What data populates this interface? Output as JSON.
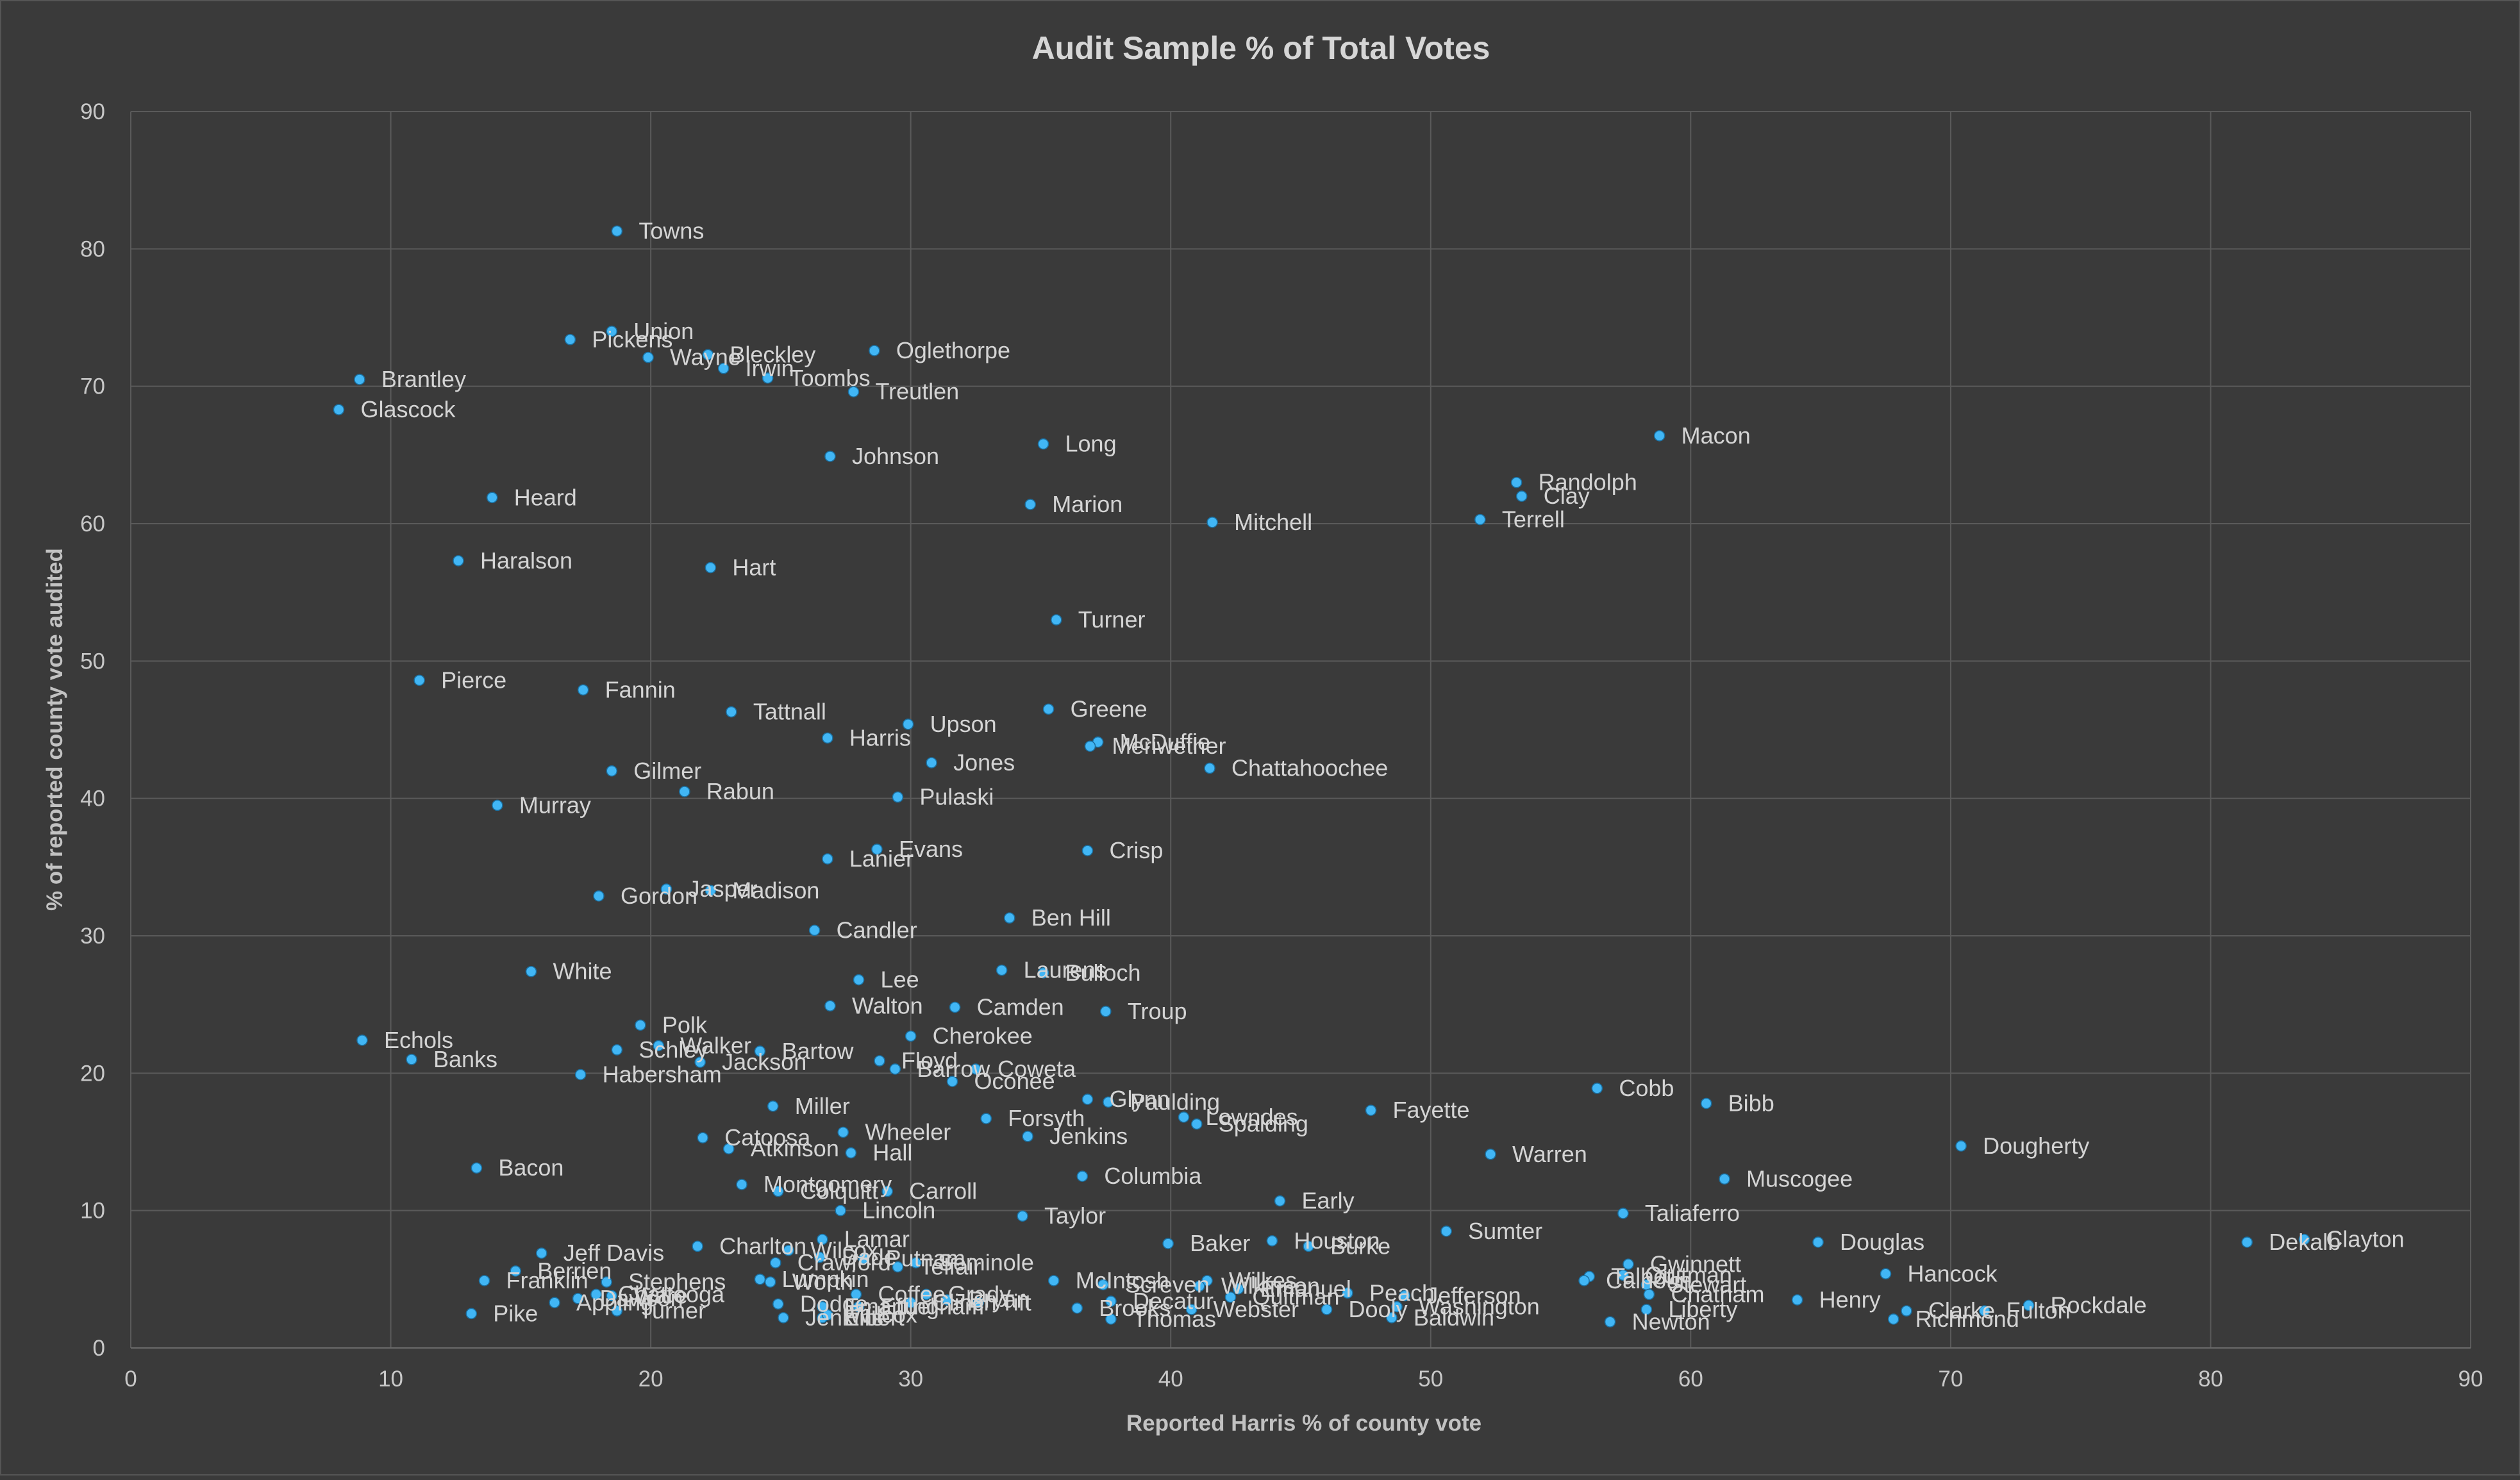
{
  "chart_data": {
    "type": "scatter",
    "title": "Audit Sample % of Total Votes",
    "xlabel": "Reported Harris % of county vote",
    "ylabel": "% of reported county vote audited",
    "xlim": [
      0,
      90
    ],
    "ylim": [
      0,
      90
    ],
    "x_ticks": [
      0,
      10,
      20,
      30,
      40,
      50,
      60,
      70,
      80,
      90
    ],
    "y_ticks": [
      0,
      10,
      20,
      30,
      40,
      50,
      60,
      70,
      80,
      90
    ],
    "grid": true,
    "legend": "none",
    "marker_color": "#41b6f5",
    "points": [
      {
        "label": "Towns",
        "x": 18.7,
        "y": 81.3
      },
      {
        "label": "Union",
        "x": 18.5,
        "y": 74.0
      },
      {
        "label": "Pickens",
        "x": 16.9,
        "y": 73.4
      },
      {
        "label": "Bleckley",
        "x": 22.2,
        "y": 72.3
      },
      {
        "label": "Wayne",
        "x": 19.9,
        "y": 72.1
      },
      {
        "label": "Irwin",
        "x": 22.8,
        "y": 71.3
      },
      {
        "label": "Toombs",
        "x": 24.5,
        "y": 70.6
      },
      {
        "label": "Oglethorpe",
        "x": 28.6,
        "y": 72.6
      },
      {
        "label": "Brantley",
        "x": 8.8,
        "y": 70.5
      },
      {
        "label": "Treutlen",
        "x": 27.8,
        "y": 69.6
      },
      {
        "label": "Glascock",
        "x": 8.0,
        "y": 68.3
      },
      {
        "label": "Macon",
        "x": 58.8,
        "y": 66.4
      },
      {
        "label": "Long",
        "x": 35.1,
        "y": 65.8
      },
      {
        "label": "Johnson",
        "x": 26.9,
        "y": 64.9
      },
      {
        "label": "Randolph",
        "x": 53.3,
        "y": 63.0
      },
      {
        "label": "Clay",
        "x": 53.5,
        "y": 62.0
      },
      {
        "label": "Heard",
        "x": 13.9,
        "y": 61.9
      },
      {
        "label": "Marion",
        "x": 34.6,
        "y": 61.4
      },
      {
        "label": "Terrell",
        "x": 51.9,
        "y": 60.3
      },
      {
        "label": "Mitchell",
        "x": 41.6,
        "y": 60.1
      },
      {
        "label": "Haralson",
        "x": 12.6,
        "y": 57.3
      },
      {
        "label": "Hart",
        "x": 22.3,
        "y": 56.8
      },
      {
        "label": "Turner",
        "x": 35.6,
        "y": 53.0
      },
      {
        "label": "Pierce",
        "x": 11.1,
        "y": 48.6
      },
      {
        "label": "Fannin",
        "x": 17.4,
        "y": 47.9
      },
      {
        "label": "Greene",
        "x": 35.3,
        "y": 46.5
      },
      {
        "label": "Tattnall",
        "x": 23.1,
        "y": 46.3
      },
      {
        "label": "Upson",
        "x": 29.9,
        "y": 45.4
      },
      {
        "label": "Harris",
        "x": 26.8,
        "y": 44.4
      },
      {
        "label": "McDuffie",
        "x": 37.2,
        "y": 44.1
      },
      {
        "label": "Meriwether",
        "x": 36.9,
        "y": 43.8
      },
      {
        "label": "Jones",
        "x": 30.8,
        "y": 42.6
      },
      {
        "label": "Chattahoochee",
        "x": 41.5,
        "y": 42.2
      },
      {
        "label": "Gilmer",
        "x": 18.5,
        "y": 42.0
      },
      {
        "label": "Rabun",
        "x": 21.3,
        "y": 40.5
      },
      {
        "label": "Pulaski",
        "x": 29.5,
        "y": 40.1
      },
      {
        "label": "Murray",
        "x": 14.1,
        "y": 39.5
      },
      {
        "label": "Evans",
        "x": 28.7,
        "y": 36.3
      },
      {
        "label": "Crisp",
        "x": 36.8,
        "y": 36.2
      },
      {
        "label": "Lanier",
        "x": 26.8,
        "y": 35.6
      },
      {
        "label": "Jasper",
        "x": 20.6,
        "y": 33.4
      },
      {
        "label": "Madison",
        "x": 22.3,
        "y": 33.3
      },
      {
        "label": "Gordon",
        "x": 18.0,
        "y": 32.9
      },
      {
        "label": "Ben Hill",
        "x": 33.8,
        "y": 31.3
      },
      {
        "label": "Candler",
        "x": 26.3,
        "y": 30.4
      },
      {
        "label": "White",
        "x": 15.4,
        "y": 27.4
      },
      {
        "label": "Laurens",
        "x": 33.5,
        "y": 27.5
      },
      {
        "label": "Bulloch",
        "x": 35.1,
        "y": 27.3
      },
      {
        "label": "Lee",
        "x": 28.0,
        "y": 26.8
      },
      {
        "label": "Walton",
        "x": 26.9,
        "y": 24.9
      },
      {
        "label": "Camden",
        "x": 31.7,
        "y": 24.8
      },
      {
        "label": "Troup",
        "x": 37.5,
        "y": 24.5
      },
      {
        "label": "Polk",
        "x": 19.6,
        "y": 23.5
      },
      {
        "label": "Echols",
        "x": 8.9,
        "y": 22.4
      },
      {
        "label": "Cherokee",
        "x": 30.0,
        "y": 22.7
      },
      {
        "label": "Walker",
        "x": 20.3,
        "y": 22.0
      },
      {
        "label": "Bartow",
        "x": 24.2,
        "y": 21.6
      },
      {
        "label": "Schley",
        "x": 18.7,
        "y": 21.7
      },
      {
        "label": "Banks",
        "x": 10.8,
        "y": 21.0
      },
      {
        "label": "Jackson",
        "x": 21.9,
        "y": 20.8
      },
      {
        "label": "Floyd",
        "x": 28.8,
        "y": 20.9
      },
      {
        "label": "Barrow",
        "x": 29.4,
        "y": 20.3
      },
      {
        "label": "Coweta",
        "x": 32.5,
        "y": 20.3
      },
      {
        "label": "Habersham",
        "x": 17.3,
        "y": 19.9
      },
      {
        "label": "Oconee",
        "x": 31.6,
        "y": 19.4
      },
      {
        "label": "Cobb",
        "x": 56.4,
        "y": 18.9
      },
      {
        "label": "Glynn",
        "x": 36.8,
        "y": 18.1
      },
      {
        "label": "Paulding",
        "x": 37.6,
        "y": 17.9
      },
      {
        "label": "Bibb",
        "x": 60.6,
        "y": 17.8
      },
      {
        "label": "Miller",
        "x": 24.7,
        "y": 17.6
      },
      {
        "label": "Fayette",
        "x": 47.7,
        "y": 17.3
      },
      {
        "label": "Lowndes",
        "x": 40.5,
        "y": 16.8
      },
      {
        "label": "Forsyth",
        "x": 32.9,
        "y": 16.7
      },
      {
        "label": "Spalding",
        "x": 41.0,
        "y": 16.3
      },
      {
        "label": "Wheeler",
        "x": 27.4,
        "y": 15.7
      },
      {
        "label": "Catoosa",
        "x": 22.0,
        "y": 15.3
      },
      {
        "label": "Jenkins",
        "x": 34.5,
        "y": 15.4
      },
      {
        "label": "Dougherty",
        "x": 70.4,
        "y": 14.7
      },
      {
        "label": "Atkinson",
        "x": 23.0,
        "y": 14.5
      },
      {
        "label": "Hall",
        "x": 27.7,
        "y": 14.2
      },
      {
        "label": "Warren",
        "x": 52.3,
        "y": 14.1
      },
      {
        "label": "Bacon",
        "x": 13.3,
        "y": 13.1
      },
      {
        "label": "Columbia",
        "x": 36.6,
        "y": 12.5
      },
      {
        "label": "Muscogee",
        "x": 61.3,
        "y": 12.3
      },
      {
        "label": "Montgomery",
        "x": 23.5,
        "y": 11.9
      },
      {
        "label": "Colquitt",
        "x": 24.9,
        "y": 11.4
      },
      {
        "label": "Carroll",
        "x": 29.1,
        "y": 11.4
      },
      {
        "label": "Early",
        "x": 44.2,
        "y": 10.7
      },
      {
        "label": "Lincoln",
        "x": 27.3,
        "y": 10.0
      },
      {
        "label": "Taliaferro",
        "x": 57.4,
        "y": 9.8
      },
      {
        "label": "Taylor",
        "x": 34.3,
        "y": 9.6
      },
      {
        "label": "Sumter",
        "x": 50.6,
        "y": 8.5
      },
      {
        "label": "Lamar",
        "x": 26.6,
        "y": 7.9
      },
      {
        "label": "Clayton",
        "x": 83.6,
        "y": 7.9
      },
      {
        "label": "Baker",
        "x": 39.9,
        "y": 7.6
      },
      {
        "label": "Houston",
        "x": 43.9,
        "y": 7.8
      },
      {
        "label": "Dekalb",
        "x": 81.4,
        "y": 7.7
      },
      {
        "label": "Douglas",
        "x": 64.9,
        "y": 7.7
      },
      {
        "label": "Burke",
        "x": 45.3,
        "y": 7.4
      },
      {
        "label": "Charlton",
        "x": 21.8,
        "y": 7.4
      },
      {
        "label": "Wilcox",
        "x": 25.3,
        "y": 7.1
      },
      {
        "label": "Jeff Davis",
        "x": 15.8,
        "y": 6.9
      },
      {
        "label": "Dade",
        "x": 26.5,
        "y": 6.6
      },
      {
        "label": "Putnam",
        "x": 28.2,
        "y": 6.5
      },
      {
        "label": "Crawford",
        "x": 24.8,
        "y": 6.2
      },
      {
        "label": "Seminole",
        "x": 30.2,
        "y": 6.2
      },
      {
        "label": "Gwinnett",
        "x": 57.6,
        "y": 6.1
      },
      {
        "label": "Telfair",
        "x": 29.5,
        "y": 5.9
      },
      {
        "label": "Berrien",
        "x": 14.8,
        "y": 5.6
      },
      {
        "label": "Hancock",
        "x": 67.5,
        "y": 5.4
      },
      {
        "label": "Quitman",
        "x": 57.4,
        "y": 5.3
      },
      {
        "label": "Talbot",
        "x": 56.1,
        "y": 5.2
      },
      {
        "label": "Calhoun",
        "x": 55.9,
        "y": 4.9
      },
      {
        "label": "Franklin",
        "x": 13.6,
        "y": 4.9
      },
      {
        "label": "Stephens",
        "x": 18.3,
        "y": 4.8
      },
      {
        "label": "Lumpkin",
        "x": 24.2,
        "y": 5.0
      },
      {
        "label": "Worth",
        "x": 24.6,
        "y": 4.8
      },
      {
        "label": "McIntosh",
        "x": 35.5,
        "y": 4.9
      },
      {
        "label": "Wilkes",
        "x": 41.4,
        "y": 4.9
      },
      {
        "label": "Screven",
        "x": 37.4,
        "y": 4.6
      },
      {
        "label": "Wilkinson",
        "x": 41.1,
        "y": 4.5
      },
      {
        "label": "Emanuel",
        "x": 42.6,
        "y": 4.3
      },
      {
        "label": "Stewart",
        "x": 58.3,
        "y": 4.6
      },
      {
        "label": "Coffee",
        "x": 27.9,
        "y": 3.9
      },
      {
        "label": "Grady",
        "x": 30.6,
        "y": 3.9
      },
      {
        "label": "Jefferson",
        "x": 49.0,
        "y": 3.8
      },
      {
        "label": "Peach",
        "x": 46.8,
        "y": 4.0
      },
      {
        "label": "Chattooga",
        "x": 17.9,
        "y": 3.9
      },
      {
        "label": "Ware",
        "x": 18.5,
        "y": 3.8
      },
      {
        "label": "Dawson",
        "x": 17.2,
        "y": 3.6
      },
      {
        "label": "Chatham",
        "x": 58.4,
        "y": 3.9
      },
      {
        "label": "Henry",
        "x": 64.1,
        "y": 3.5
      },
      {
        "label": "Bryan",
        "x": 31.4,
        "y": 3.5
      },
      {
        "label": "Tift",
        "x": 32.6,
        "y": 3.3
      },
      {
        "label": "Decatur",
        "x": 37.7,
        "y": 3.4
      },
      {
        "label": "Clinch",
        "x": 30.0,
        "y": 3.3
      },
      {
        "label": "Quitman2",
        "x": 42.3,
        "y": 3.7
      },
      {
        "label": "Dodge",
        "x": 24.9,
        "y": 3.2
      },
      {
        "label": "Effingham",
        "x": 28.0,
        "y": 3.0
      },
      {
        "label": "Appling",
        "x": 16.3,
        "y": 3.3
      },
      {
        "label": "Emanuel2",
        "x": 26.6,
        "y": 3.0
      },
      {
        "label": "Brooks",
        "x": 36.4,
        "y": 2.9
      },
      {
        "label": "Webster",
        "x": 40.8,
        "y": 2.8
      },
      {
        "label": "Dooly",
        "x": 46.0,
        "y": 2.8
      },
      {
        "label": "Washington",
        "x": 48.7,
        "y": 3.0
      },
      {
        "label": "Liberty",
        "x": 58.3,
        "y": 2.8
      },
      {
        "label": "Clarke",
        "x": 68.3,
        "y": 2.7
      },
      {
        "label": "Fulton",
        "x": 71.3,
        "y": 2.7
      },
      {
        "label": "Rockdale",
        "x": 73.0,
        "y": 3.1
      },
      {
        "label": "Turner2",
        "x": 18.7,
        "y": 2.7
      },
      {
        "label": "Pike",
        "x": 13.1,
        "y": 2.5
      },
      {
        "label": "Jenkins2",
        "x": 25.1,
        "y": 2.2
      },
      {
        "label": "Thomas",
        "x": 37.7,
        "y": 2.1
      },
      {
        "label": "Baldwin",
        "x": 48.5,
        "y": 2.2
      },
      {
        "label": "Richmond",
        "x": 67.8,
        "y": 2.1
      },
      {
        "label": "Newton",
        "x": 56.9,
        "y": 1.9
      },
      {
        "label": "Elbert",
        "x": 26.6,
        "y": 2.2
      },
      {
        "label": "Ansley",
        "x": 26.8,
        "y": 2.4
      }
    ],
    "display_labels": {
      "Quitman2": "Quitman",
      "Emanuel2": "Emanuel",
      "Turner2": "Turner",
      "Jenkins2": "Jenkins",
      "Ansley": "Wilcox"
    }
  }
}
